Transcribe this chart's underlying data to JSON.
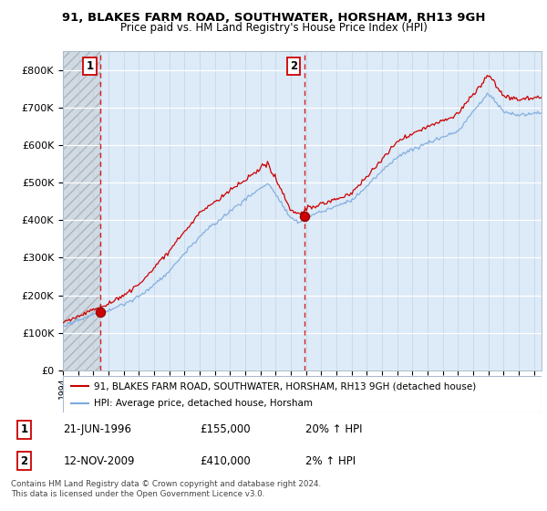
{
  "title_line1": "91, BLAKES FARM ROAD, SOUTHWATER, HORSHAM, RH13 9GH",
  "title_line2": "Price paid vs. HM Land Registry's House Price Index (HPI)",
  "ylim": [
    0,
    850000
  ],
  "yticks": [
    0,
    100000,
    200000,
    300000,
    400000,
    500000,
    600000,
    700000,
    800000
  ],
  "sale1_year": 1996.47,
  "sale1_price": 155000,
  "sale2_year": 2009.87,
  "sale2_price": 410000,
  "hpi_color": "#7aaadd",
  "price_color": "#cc0000",
  "background_color": "#ddeaf7",
  "legend_label1": "91, BLAKES FARM ROAD, SOUTHWATER, HORSHAM, RH13 9GH (detached house)",
  "legend_label2": "HPI: Average price, detached house, Horsham",
  "footnote": "Contains HM Land Registry data © Crown copyright and database right 2024.\nThis data is licensed under the Open Government Licence v3.0.",
  "table_row1": [
    "1",
    "21-JUN-1996",
    "£155,000",
    "20% ↑ HPI"
  ],
  "table_row2": [
    "2",
    "12-NOV-2009",
    "£410,000",
    "2% ↑ HPI"
  ]
}
